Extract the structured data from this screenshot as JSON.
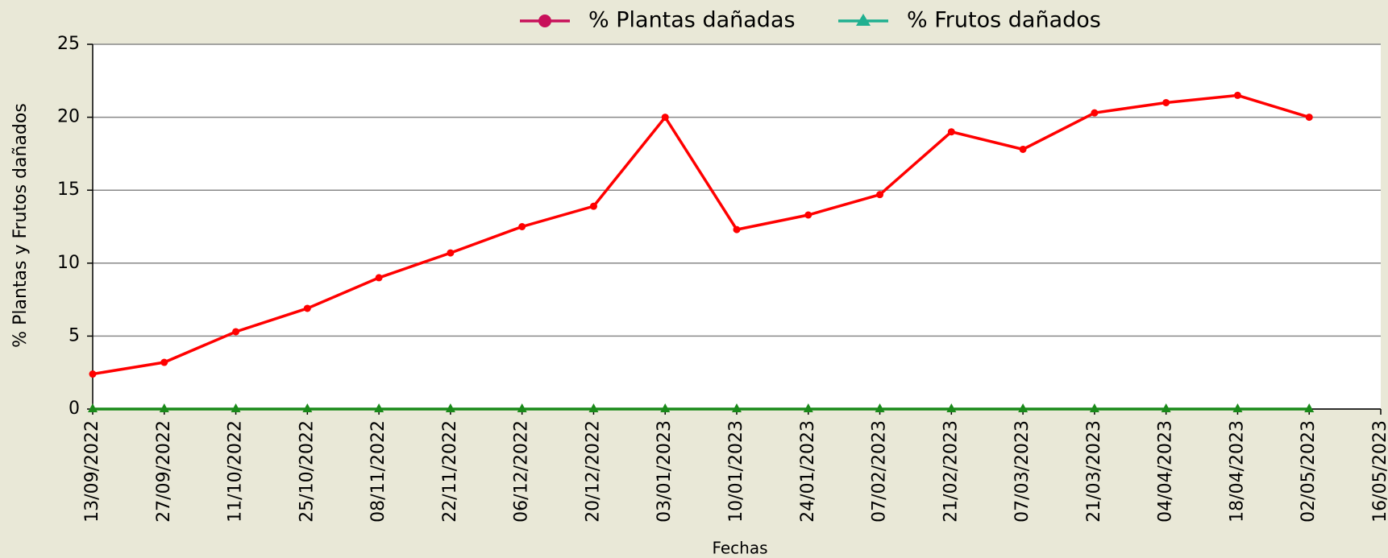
{
  "chart_data": {
    "type": "line",
    "y_label": "% Plantas y Frutos dañados",
    "x_label": "Fechas",
    "categories": [
      "13/09/2022",
      "27/09/2022",
      "11/10/2022",
      "25/10/2022",
      "08/11/2022",
      "22/11/2022",
      "06/12/2022",
      "20/12/2022",
      "03/01/2023",
      "10/01/2023",
      "24/01/2023",
      "07/02/2023",
      "21/02/2023",
      "07/03/2023",
      "21/03/2023",
      "04/04/2023",
      "18/04/2023",
      "02/05/2023",
      "16/05/2023"
    ],
    "series": [
      {
        "name": "% Plantas dañadas",
        "color": "#ff0000",
        "legend_color": "#c8105a",
        "marker": "circle",
        "values": [
          2.4,
          3.2,
          5.3,
          6.9,
          9.0,
          10.7,
          12.5,
          13.9,
          20.0,
          12.3,
          13.3,
          14.7,
          19.0,
          17.8,
          20.3,
          21.0,
          21.5,
          20.0,
          null
        ]
      },
      {
        "name": "% Frutos dañados",
        "color": "#1a8a1a",
        "legend_color": "#20b090",
        "marker": "triangle",
        "values": [
          0,
          0,
          0,
          0,
          0,
          0,
          0,
          0,
          0,
          0,
          0,
          0,
          0,
          0,
          0,
          0,
          0,
          0,
          null
        ]
      }
    ],
    "ylim": [
      0,
      25
    ],
    "yticks": [
      0,
      5,
      10,
      15,
      20,
      25
    ],
    "grid": true,
    "legend": "top"
  }
}
